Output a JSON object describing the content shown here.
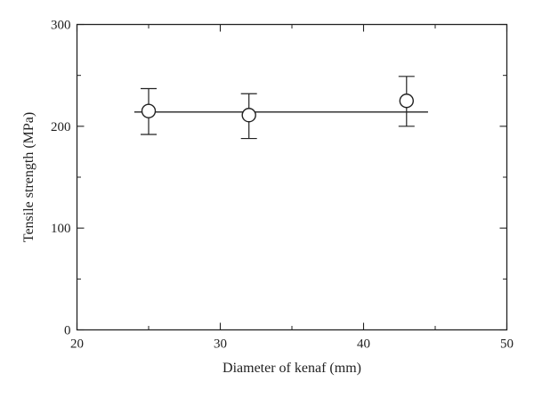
{
  "chart_data": {
    "type": "scatter",
    "title": "",
    "xlabel": "Diameter of kenaf (mm)",
    "ylabel": "Tensile strength (MPa)",
    "xlim": [
      20,
      50
    ],
    "ylim": [
      0,
      300
    ],
    "xticks": [
      20,
      30,
      40,
      50
    ],
    "yticks": [
      0,
      100,
      200,
      300
    ],
    "xtick_labels": [
      "20",
      "30",
      "40",
      "50"
    ],
    "ytick_labels": [
      "0",
      "100",
      "200",
      "300"
    ],
    "grid": false,
    "legend": "none",
    "marker": "open-circle",
    "series": [
      {
        "x": [
          25,
          32,
          43
        ],
        "y": [
          215,
          211,
          225
        ],
        "error_low": [
          192,
          188,
          200
        ],
        "error_high": [
          237,
          232,
          249
        ]
      }
    ],
    "fit_line": {
      "x": [
        24,
        44.5
      ],
      "y": [
        214,
        214
      ]
    },
    "colors": {
      "ink": "#222222",
      "background": "#ffffff"
    }
  }
}
